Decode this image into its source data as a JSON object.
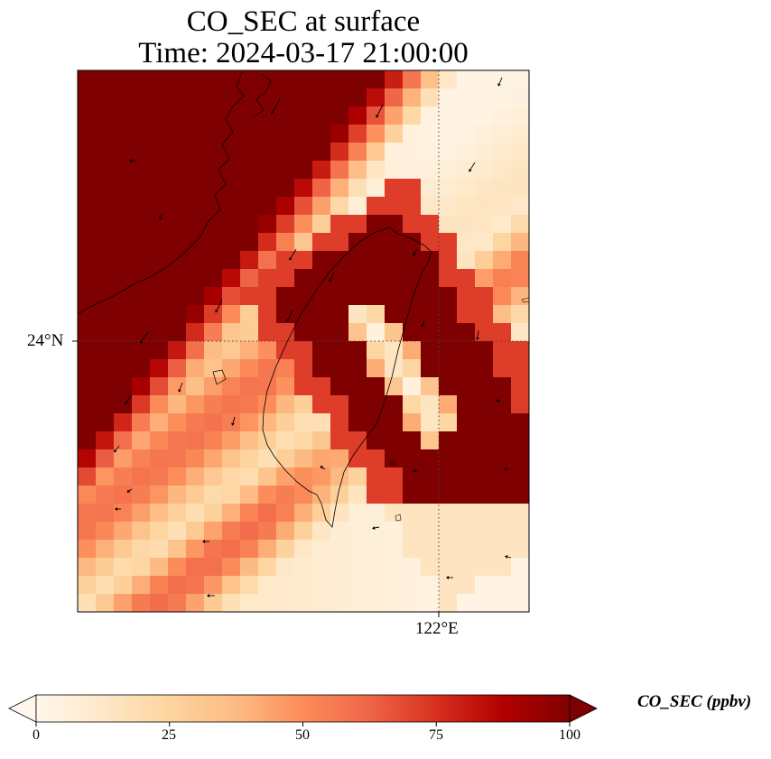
{
  "title": {
    "line1": "CO_SEC at surface",
    "line2": "Time: 2024-03-17 21:00:00"
  },
  "map": {
    "lat_ticks": [
      "24°N"
    ],
    "lon_ticks": [
      "122°E"
    ],
    "gridline_style": "dotted",
    "field": "CO_SEC",
    "overlay": "wind vectors",
    "coastline": "Taiwan and Fujian coast"
  },
  "colorbar": {
    "label": "CO_SEC (ppbv)",
    "ticks": [
      "0",
      "25",
      "50",
      "75",
      "100"
    ],
    "range": [
      0,
      100
    ],
    "extend": "both",
    "colormap": [
      "#fff7ec",
      "#fee8c8",
      "#fdd49e",
      "#fdbb84",
      "#fc8d59",
      "#ef6548",
      "#d7301f",
      "#b30000",
      "#7f0000"
    ]
  }
}
